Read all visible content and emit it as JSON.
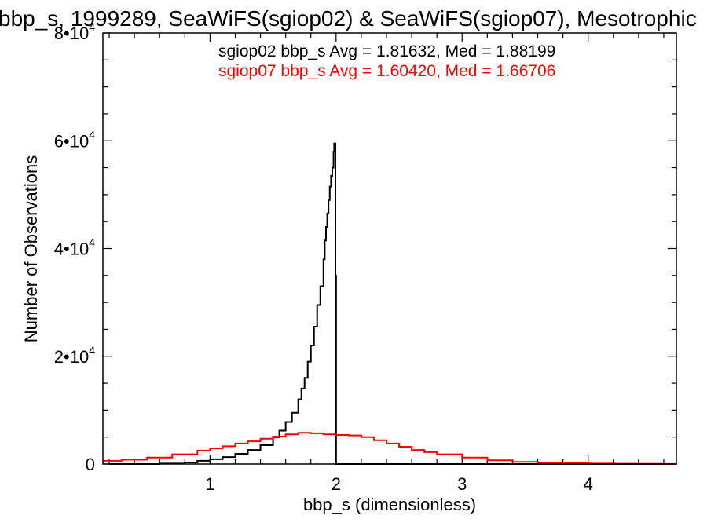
{
  "chart_data": {
    "type": "histogram",
    "title": "bbp_s, 1999289, SeaWiFS(sgiop02) & SeaWiFS(sgiop07), Mesotrophic",
    "xlabel": "bbp_s (dimensionless)",
    "ylabel": "Number of Observations",
    "xlim": [
      0.15,
      4.7
    ],
    "ylim": [
      0,
      80000
    ],
    "x_ticks": [
      "1",
      "2",
      "3",
      "4"
    ],
    "y_ticks": [
      {
        "base": "0",
        "exp": ""
      },
      {
        "base": "2•10",
        "exp": "4"
      },
      {
        "base": "4•10",
        "exp": "4"
      },
      {
        "base": "6•10",
        "exp": "4"
      },
      {
        "base": "8•10",
        "exp": "4"
      }
    ],
    "grid": false,
    "annotations": [
      {
        "text": "sgiop02 bbp_s Avg = 1.81632, Med = 1.88199",
        "color": "#000000"
      },
      {
        "text": "sgiop07 bbp_s Avg = 1.60420, Med = 1.66706",
        "color": "#ff0000"
      }
    ],
    "series": [
      {
        "color": "#000000",
        "x": [
          0.2,
          0.4,
          0.6,
          0.8,
          0.9,
          1.0,
          1.1,
          1.2,
          1.3,
          1.4,
          1.5,
          1.55,
          1.6,
          1.65,
          1.7,
          1.725,
          1.75,
          1.775,
          1.8,
          1.825,
          1.85,
          1.875,
          1.9,
          1.91,
          1.92,
          1.93,
          1.94,
          1.95,
          1.96,
          1.97,
          1.98,
          1.985,
          1.99,
          1.995,
          2.0,
          2.01,
          2.05,
          2.5,
          3.0,
          4.0,
          4.7
        ],
        "y": [
          0,
          0,
          100,
          300,
          600,
          900,
          1300,
          1900,
          2600,
          3500,
          5000,
          6200,
          7800,
          9500,
          12000,
          14000,
          16000,
          19000,
          22000,
          25500,
          29500,
          33000,
          38000,
          41500,
          44000,
          46500,
          49000,
          51500,
          53500,
          55000,
          58000,
          59500,
          59500,
          35000,
          0,
          0,
          0,
          0,
          0,
          0,
          0
        ]
      },
      {
        "color": "#ff0000",
        "x": [
          0.15,
          0.3,
          0.5,
          0.7,
          0.9,
          1.0,
          1.1,
          1.2,
          1.3,
          1.4,
          1.5,
          1.6,
          1.7,
          1.8,
          1.9,
          2.0,
          2.1,
          2.2,
          2.3,
          2.4,
          2.5,
          2.6,
          2.7,
          2.8,
          3.0,
          3.2,
          3.4,
          3.6,
          3.8,
          4.0,
          4.2,
          4.4,
          4.6,
          4.7
        ],
        "y": [
          600,
          800,
          1200,
          1800,
          2500,
          2900,
          3300,
          3800,
          4200,
          4700,
          5100,
          5500,
          5800,
          5700,
          5500,
          5400,
          5300,
          5000,
          4400,
          3800,
          3200,
          2600,
          2200,
          1800,
          1200,
          700,
          400,
          250,
          150,
          100,
          60,
          30,
          20,
          10
        ]
      }
    ]
  }
}
